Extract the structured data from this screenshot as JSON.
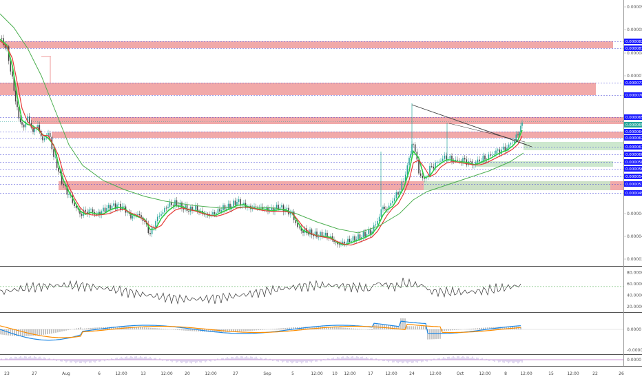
{
  "colors": {
    "zone_red": "#ef9a9a",
    "zone_green": "#c8e6c9",
    "level_line": "#3f3fd6",
    "tag_bg": "#1a1aff",
    "candle_up": "#26a69a",
    "candle_down": "#444444",
    "ma_fast": "#e53935",
    "ma_mid": "#2ecc40",
    "ma_slow": "#4caf50",
    "rsi_line": "#333333",
    "rsi_ref": "#4caf50",
    "macd_line": "#1e88e5",
    "signal_line": "#fb8c00",
    "hist": "#888888"
  },
  "price_axis": {
    "labels": [
      "0.0000900",
      "0.0000850",
      "0.0000800",
      "0.0000750",
      "0.0000450",
      "0.0000400",
      "0.0000350"
    ]
  },
  "level_tags": [
    "0.0000827",
    "0.0000811",
    "0.0000736",
    "0.0000706",
    "0.0000659",
    "0.0000647",
    "0.0000625",
    "0.0000612",
    "0.0000604",
    "0.0000585",
    "0.0000565",
    "0.0000544",
    "0.0000518",
    "0.0000497"
  ],
  "current_price_tag": "0.0000657",
  "rsi_axis": {
    "labels": [
      "80.0000",
      "60.0000",
      "40.0000",
      "20.0000"
    ]
  },
  "macd_axis": {
    "labels": [
      "0.0000",
      "-0.0000"
    ]
  },
  "osc_axis": {
    "labels": [
      "0.0000"
    ]
  },
  "time_axis": {
    "labels": [
      "23",
      "27",
      "Aug",
      "6",
      "12:00",
      "13",
      "12:00",
      "20",
      "12:00",
      "27",
      "Sep",
      "5",
      "12:00",
      "10",
      "12:00",
      "17",
      "12:00",
      "24",
      "12:00",
      "Oct",
      "12:00",
      "8",
      "12:00",
      "15",
      "12:00",
      "22",
      "26"
    ]
  }
}
